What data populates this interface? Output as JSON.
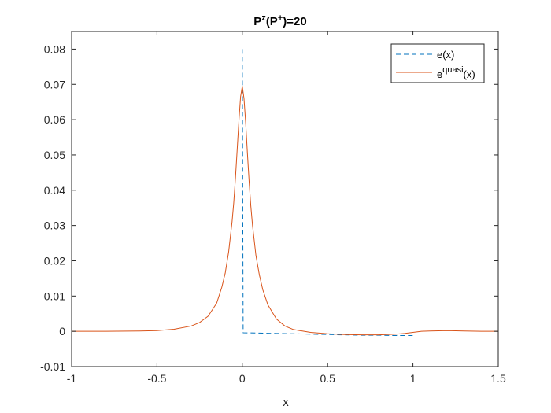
{
  "chart_data": {
    "type": "line",
    "title": {
      "base": "P",
      "sup1": "z",
      "mid": "(P",
      "sup2": "+",
      "end": ")=20"
    },
    "xlabel": "x",
    "ylabel": "",
    "xlim": [
      -1,
      1.5
    ],
    "ylim": [
      -0.01,
      0.085
    ],
    "xticks": [
      -1,
      -0.5,
      0,
      0.5,
      1,
      1.5
    ],
    "xtick_labels": [
      "-1",
      "-0.5",
      "0",
      "0.5",
      "1",
      "1.5"
    ],
    "yticks": [
      -0.01,
      0,
      0.01,
      0.02,
      0.03,
      0.04,
      0.05,
      0.06,
      0.07,
      0.08
    ],
    "ytick_labels": [
      "-0.01",
      "0",
      "0.01",
      "0.02",
      "0.03",
      "0.04",
      "0.05",
      "0.06",
      "0.07",
      "0.08"
    ],
    "grid": false,
    "legend": {
      "placement": "top-right",
      "entries": [
        {
          "base": "e(x)",
          "sup": "",
          "tail": ""
        },
        {
          "base": "e",
          "sup": "quasi",
          "tail": "(x)"
        }
      ]
    },
    "series": [
      {
        "name": "e(x)",
        "style": "dashed",
        "color": "#0072BD",
        "x": [
          0.0,
          0.0,
          0.005,
          0.1,
          0.2,
          0.3,
          0.4,
          0.5,
          0.6,
          0.7,
          0.8,
          0.9,
          1.0
        ],
        "y": [
          0.08,
          0.08,
          -0.0004,
          -0.0005,
          -0.0006,
          -0.0007,
          -0.0008,
          -0.0009,
          -0.001,
          -0.0011,
          -0.0011,
          -0.0012,
          -0.0012
        ]
      },
      {
        "name": "e^quasi(x)",
        "style": "solid",
        "color": "#D95319",
        "x": [
          -1.0,
          -0.8,
          -0.6,
          -0.5,
          -0.4,
          -0.3,
          -0.25,
          -0.2,
          -0.15,
          -0.12,
          -0.1,
          -0.08,
          -0.06,
          -0.05,
          -0.04,
          -0.03,
          -0.02,
          -0.01,
          0.0,
          0.01,
          0.02,
          0.03,
          0.04,
          0.05,
          0.06,
          0.08,
          0.1,
          0.12,
          0.15,
          0.2,
          0.25,
          0.3,
          0.4,
          0.5,
          0.6,
          0.7,
          0.8,
          0.9,
          0.95,
          1.0,
          1.05,
          1.1,
          1.2,
          1.3,
          1.4,
          1.5
        ],
        "y": [
          0.0,
          0.0,
          0.0001,
          0.0002,
          0.0006,
          0.0015,
          0.0025,
          0.0043,
          0.008,
          0.0125,
          0.0165,
          0.0225,
          0.031,
          0.0365,
          0.0435,
          0.0515,
          0.0595,
          0.0665,
          0.0695,
          0.066,
          0.059,
          0.0505,
          0.0425,
          0.0355,
          0.03,
          0.0215,
          0.016,
          0.0118,
          0.0075,
          0.0035,
          0.0015,
          0.0005,
          -0.0003,
          -0.0007,
          -0.0009,
          -0.001,
          -0.001,
          -0.0008,
          -0.0006,
          -0.0003,
          0.0,
          0.0001,
          0.0002,
          0.0001,
          0.0,
          0.0
        ]
      }
    ]
  }
}
